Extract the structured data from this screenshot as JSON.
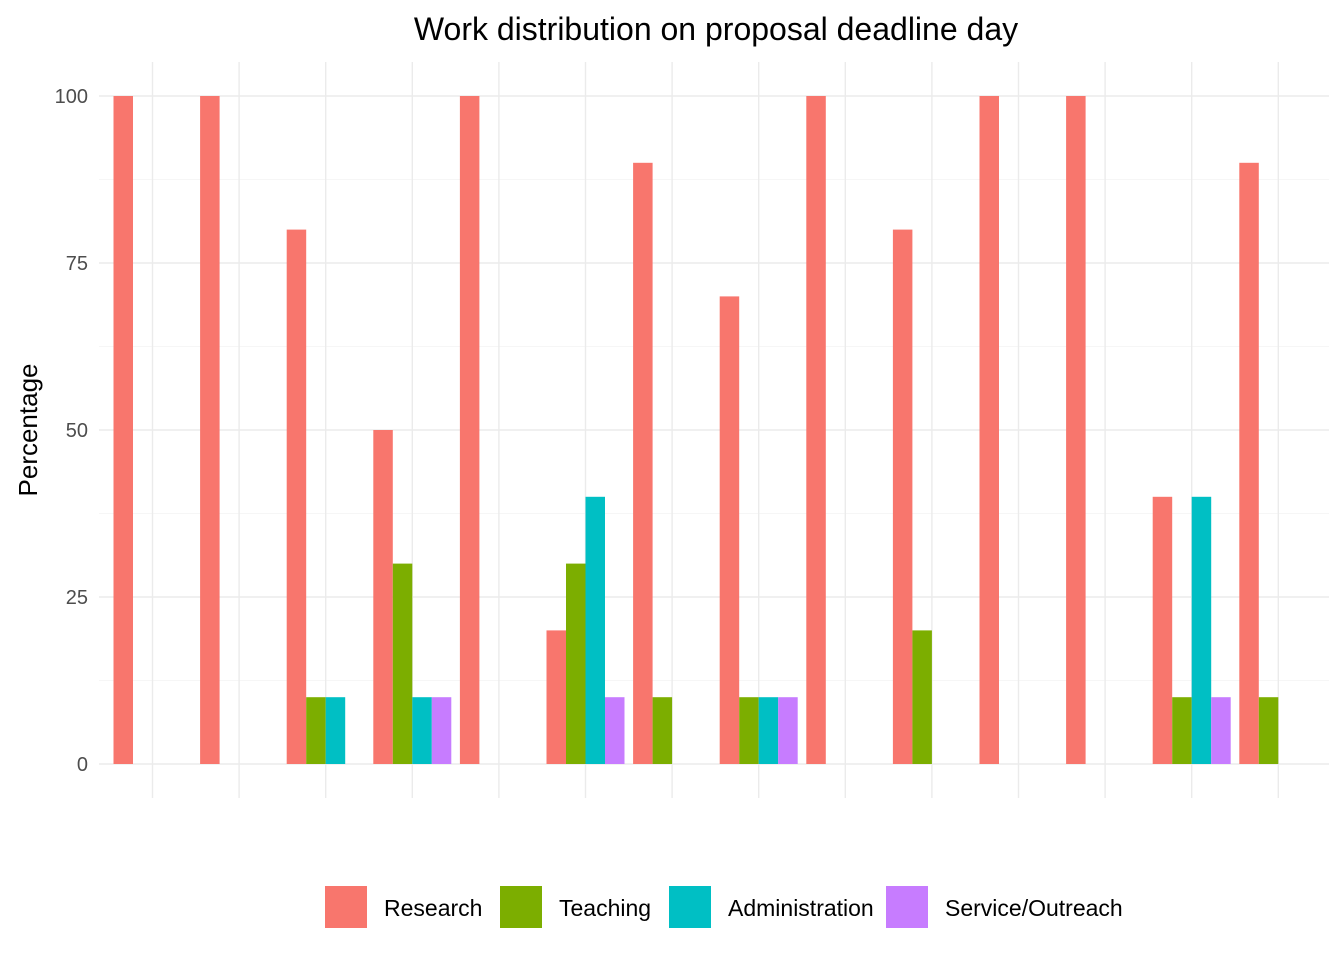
{
  "chart_data": {
    "type": "bar",
    "title": "Work distribution on proposal deadline day",
    "xlabel": "",
    "ylabel": "Percentage",
    "ylim": [
      0,
      105
    ],
    "yticks": [
      0,
      25,
      50,
      75,
      100
    ],
    "grid": true,
    "legend_position": "bottom",
    "num_groups": 14,
    "series": [
      {
        "name": "Research",
        "color": "#F8766D",
        "values": [
          100,
          100,
          80,
          50,
          100,
          20,
          90,
          70,
          100,
          80,
          100,
          100,
          40,
          90
        ]
      },
      {
        "name": "Teaching",
        "color": "#7CAE00",
        "values": [
          0,
          0,
          10,
          30,
          0,
          30,
          10,
          10,
          0,
          20,
          0,
          0,
          10,
          10
        ]
      },
      {
        "name": "Administration",
        "color": "#00BFC4",
        "values": [
          0,
          0,
          10,
          10,
          0,
          40,
          0,
          10,
          0,
          0,
          0,
          0,
          40,
          0
        ]
      },
      {
        "name": "Service/Outreach",
        "color": "#C77CFF",
        "values": [
          0,
          0,
          0,
          10,
          0,
          10,
          0,
          10,
          0,
          0,
          0,
          0,
          10,
          0
        ]
      }
    ]
  }
}
